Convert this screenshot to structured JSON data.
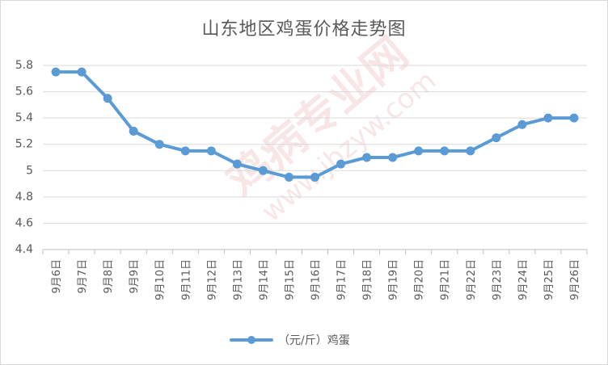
{
  "chart_data": {
    "type": "line",
    "title": "山东地区鸡蛋价格走势图",
    "categories": [
      "9月6日",
      "9月7日",
      "9月8日",
      "9月9日",
      "9月10日",
      "9月11日",
      "9月12日",
      "9月13日",
      "9月14日",
      "9月15日",
      "9月16日",
      "9月17日",
      "9月18日",
      "9月19日",
      "9月20日",
      "9月21日",
      "9月22日",
      "9月23日",
      "9月24日",
      "9月25日",
      "9月26日"
    ],
    "series": [
      {
        "name": "（元/斤）鸡蛋",
        "values": [
          5.75,
          5.75,
          5.55,
          5.3,
          5.2,
          5.15,
          5.15,
          5.05,
          5.0,
          4.95,
          4.95,
          5.05,
          5.1,
          5.1,
          5.15,
          5.15,
          5.15,
          5.25,
          5.35,
          5.4,
          5.4
        ]
      }
    ],
    "ylim": [
      4.4,
      5.8
    ],
    "yticks": [
      "4.4",
      "4.6",
      "4.8",
      "5",
      "5.2",
      "5.4",
      "5.6",
      "5.8"
    ],
    "ytick_values": [
      4.4,
      4.6,
      4.8,
      5.0,
      5.2,
      5.4,
      5.6,
      5.8
    ],
    "grid": true,
    "legend_position": "bottom",
    "colors": {
      "series": "#5b9bd5",
      "grid": "#d9d9d9",
      "text": "#595959"
    }
  },
  "watermark": {
    "text_main": "鸡病专业网",
    "text_url": "www.jbzyw.com"
  }
}
